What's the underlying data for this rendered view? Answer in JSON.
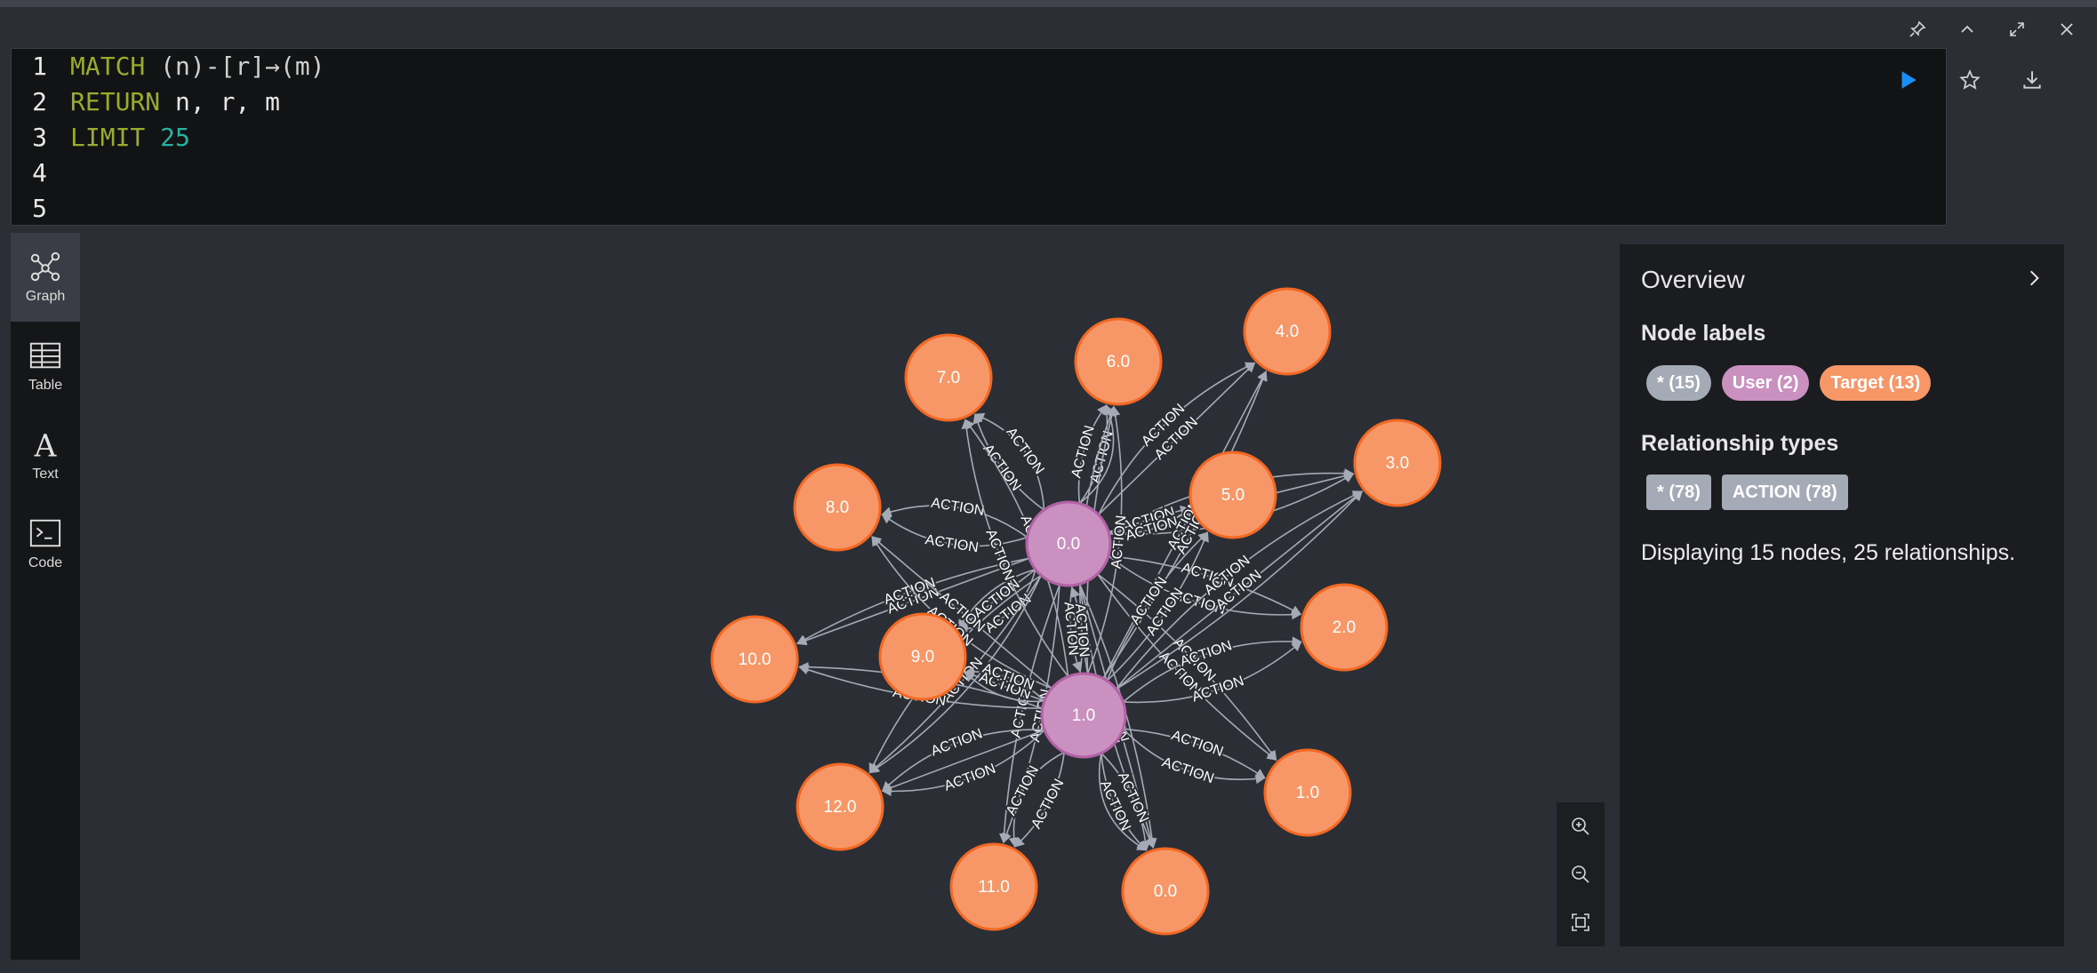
{
  "editor": {
    "lines": [
      {
        "n": "1",
        "tokens": [
          [
            "kw",
            "MATCH"
          ],
          [
            "plain",
            " "
          ],
          [
            "paren",
            "(n)-[r]→(m)"
          ]
        ]
      },
      {
        "n": "2",
        "tokens": [
          [
            "kw",
            "RETURN"
          ],
          [
            "plain",
            " n, r, m"
          ]
        ]
      },
      {
        "n": "3",
        "tokens": [
          [
            "kw",
            "LIMIT"
          ],
          [
            "plain",
            " "
          ],
          [
            "num",
            "25"
          ]
        ]
      },
      {
        "n": "4",
        "tokens": []
      },
      {
        "n": "5",
        "tokens": []
      }
    ]
  },
  "views": [
    {
      "id": "graph",
      "label": "Graph",
      "active": true
    },
    {
      "id": "table",
      "label": "Table",
      "active": false
    },
    {
      "id": "text",
      "label": "Text",
      "active": false
    },
    {
      "id": "code",
      "label": "Code",
      "active": false
    }
  ],
  "overview": {
    "title": "Overview",
    "node_labels_heading": "Node labels",
    "node_labels": [
      {
        "text": "* (15)",
        "color": "#a5abb6"
      },
      {
        "text": "User (2)",
        "color": "#c990c0"
      },
      {
        "text": "Target (13)",
        "color": "#f79767"
      }
    ],
    "relationship_types_heading": "Relationship types",
    "relationship_types": [
      {
        "text": "* (78)",
        "color": "#a5abb6"
      },
      {
        "text": "ACTION (78)",
        "color": "#a5abb6"
      }
    ],
    "summary": "Displaying 15 nodes, 25 relationships."
  },
  "graph": {
    "colors": {
      "user": "#c990c0",
      "user_border": "#b261a5",
      "target": "#f79767",
      "target_border": "#f36924",
      "edge": "#a5abb6"
    },
    "edge_label": "ACTION",
    "nodes": [
      {
        "id": "u0",
        "label": "0.0",
        "type": "user"
      },
      {
        "id": "u1",
        "label": "1.0",
        "type": "user"
      },
      {
        "id": "t0",
        "label": "0.0",
        "type": "target"
      },
      {
        "id": "t1",
        "label": "1.0",
        "type": "target"
      },
      {
        "id": "t2",
        "label": "2.0",
        "type": "target"
      },
      {
        "id": "t3",
        "label": "3.0",
        "type": "target"
      },
      {
        "id": "t4",
        "label": "4.0",
        "type": "target"
      },
      {
        "id": "t5",
        "label": "5.0",
        "type": "target"
      },
      {
        "id": "t6",
        "label": "6.0",
        "type": "target"
      },
      {
        "id": "t7",
        "label": "7.0",
        "type": "target"
      },
      {
        "id": "t8",
        "label": "8.0",
        "type": "target"
      },
      {
        "id": "t9",
        "label": "9.0",
        "type": "target"
      },
      {
        "id": "t10",
        "label": "10.0",
        "type": "target"
      },
      {
        "id": "t11",
        "label": "11.0",
        "type": "target"
      },
      {
        "id": "t12",
        "label": "12.0",
        "type": "target"
      }
    ]
  }
}
